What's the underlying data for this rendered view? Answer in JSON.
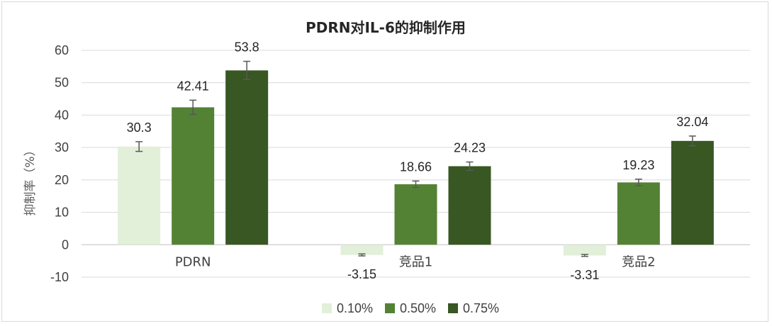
{
  "chart_data": {
    "type": "bar",
    "title": "PDRN对IL-6的抑制作用",
    "ylabel": "抑制率（%）",
    "xlabel": "",
    "categories": [
      "PDRN",
      "竞品1",
      "竞品2"
    ],
    "ylim": [
      -10,
      60
    ],
    "yticks": [
      -10,
      0,
      10,
      20,
      30,
      40,
      50,
      60
    ],
    "grid": true,
    "legend_position": "bottom",
    "series": [
      {
        "name": "0.10%",
        "color": "#e2efd9",
        "values": [
          30.3,
          -3.15,
          -3.31
        ],
        "labels": [
          "30.3",
          "-3.15",
          "-3.31"
        ],
        "errors": [
          1.5,
          0.3,
          0.3
        ]
      },
      {
        "name": "0.50%",
        "color": "#548235",
        "values": [
          42.41,
          18.66,
          19.23
        ],
        "labels": [
          "42.41",
          "18.66",
          "19.23"
        ],
        "errors": [
          2.2,
          1.0,
          1.0
        ]
      },
      {
        "name": "0.75%",
        "color": "#385723",
        "values": [
          53.8,
          24.23,
          32.04
        ],
        "labels": [
          "53.8",
          "24.23",
          "32.04"
        ],
        "errors": [
          2.8,
          1.3,
          1.5
        ]
      }
    ]
  }
}
